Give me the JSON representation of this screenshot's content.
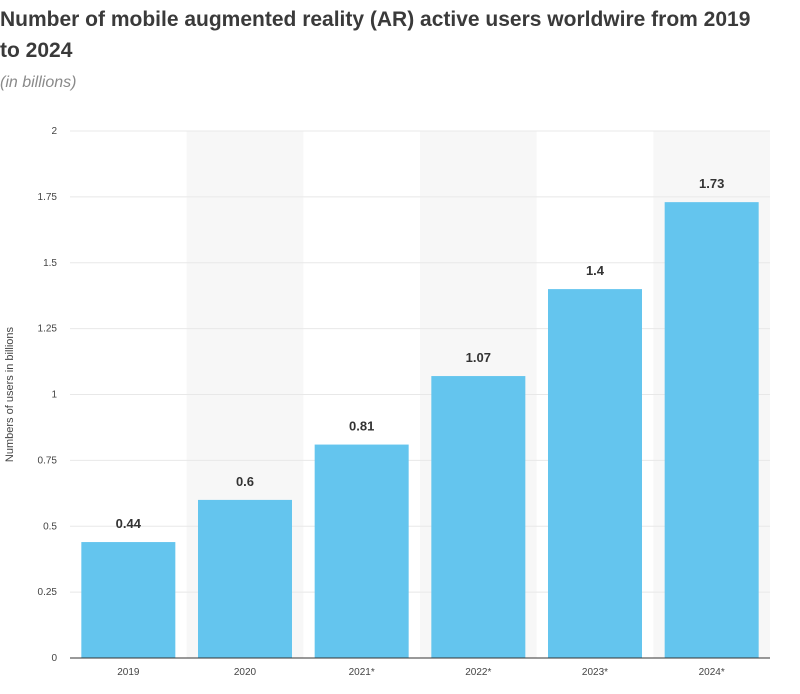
{
  "title": "Number of mobile augmented reality (AR) active users worldwire from 2019 to 2024",
  "subtitle": "(in billions)",
  "chart_data": {
    "type": "bar",
    "categories": [
      "2019",
      "2020",
      "2021*",
      "2022*",
      "2023*",
      "2024*"
    ],
    "values": [
      0.44,
      0.6,
      0.81,
      1.07,
      1.4,
      1.73
    ],
    "value_labels": [
      "0.44",
      "0.6",
      "0.81",
      "1.07",
      "1.4",
      "1.73"
    ],
    "ylabel": "Numbers of users in billions",
    "xlabel": "",
    "ylim": [
      0,
      2
    ],
    "yticks": [
      0,
      0.25,
      0.5,
      0.75,
      1,
      1.25,
      1.5,
      1.75,
      2
    ],
    "ytick_labels": [
      "0",
      "0.25",
      "0.5",
      "0.75",
      "1",
      "1.25",
      "1.5",
      "1.75",
      "2"
    ],
    "grid": true,
    "bar_color": "#64c5ee",
    "alt_band_color": "#f7f7f7"
  }
}
